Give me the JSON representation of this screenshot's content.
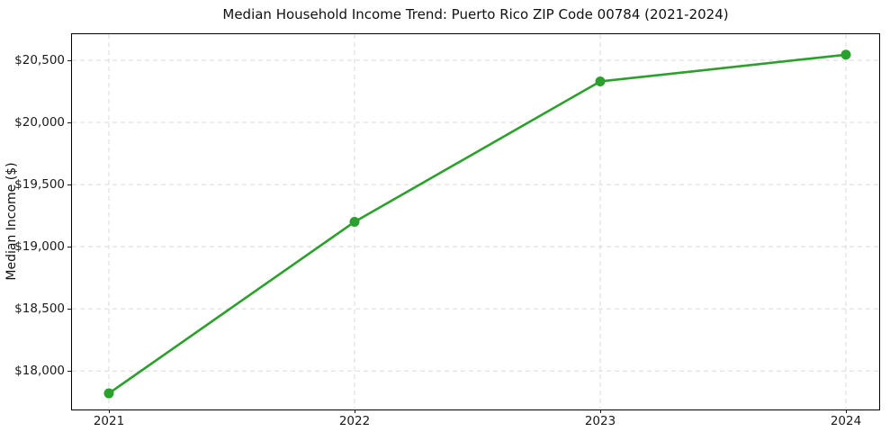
{
  "chart": {
    "title": "Median Household Income Trend: Puerto Rico ZIP Code 00784 (2021-2024)",
    "ylabel": "Median Income ($)"
  },
  "chart_data": {
    "type": "line",
    "title": "Median Household Income Trend: Puerto Rico ZIP Code 00784 (2021-2024)",
    "xlabel": "",
    "ylabel": "Median Income ($)",
    "categories": [
      "2021",
      "2022",
      "2023",
      "2024"
    ],
    "values": [
      17820,
      19200,
      20330,
      20545
    ],
    "ylim": [
      17690,
      20710
    ],
    "yticks": [
      18000,
      18500,
      19000,
      19500,
      20000,
      20500
    ],
    "ytick_labels": [
      "$18,000",
      "$18,500",
      "$19,000",
      "$19,500",
      "$20,000",
      "$20,500"
    ],
    "grid": true,
    "grid_style": "dashed",
    "legend": "none",
    "line_color": "#2ca02c",
    "marker": "circle",
    "marker_radius": 5.5,
    "line_width": 2.6,
    "grid_color": "#d9d9d9",
    "spine_color": "#000000",
    "text_color": "#1a1a1a",
    "background": "#ffffff"
  }
}
